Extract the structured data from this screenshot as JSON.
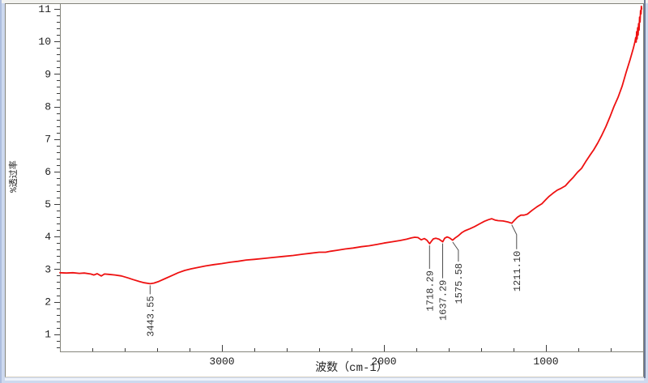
{
  "window": {
    "background_color": "#cdd9ef",
    "panel_color": "#ffffff",
    "frame_gray": "#85857c",
    "frame_beige": "#d9d4c4"
  },
  "chart_data": {
    "type": "line",
    "title": "",
    "x_axis": {
      "label": "波数（cm-1）",
      "min": 400,
      "max": 4000,
      "reversed": true,
      "major_ticks": [
        3000,
        2000,
        1000
      ],
      "minor_step": 200,
      "grid": false
    },
    "y_axis": {
      "label": "%透过率",
      "min": 0.47,
      "max": 11.15,
      "major_ticks": [
        1,
        2,
        3,
        4,
        5,
        6,
        7,
        8,
        9,
        10,
        11
      ],
      "minor_step": 0.2,
      "grid": false
    },
    "legend": "none",
    "series": [
      {
        "name": "ir-transmittance-spectrum",
        "color": "#ee1111",
        "points": [
          [
            4000,
            2.89
          ],
          [
            3960,
            2.88
          ],
          [
            3920,
            2.89
          ],
          [
            3880,
            2.87
          ],
          [
            3850,
            2.88
          ],
          [
            3810,
            2.85
          ],
          [
            3790,
            2.82
          ],
          [
            3770,
            2.86
          ],
          [
            3745,
            2.79
          ],
          [
            3725,
            2.85
          ],
          [
            3700,
            2.84
          ],
          [
            3660,
            2.82
          ],
          [
            3620,
            2.79
          ],
          [
            3580,
            2.73
          ],
          [
            3550,
            2.68
          ],
          [
            3510,
            2.62
          ],
          [
            3480,
            2.58
          ],
          [
            3443,
            2.55
          ],
          [
            3420,
            2.57
          ],
          [
            3390,
            2.62
          ],
          [
            3350,
            2.71
          ],
          [
            3310,
            2.8
          ],
          [
            3270,
            2.89
          ],
          [
            3230,
            2.96
          ],
          [
            3190,
            3.01
          ],
          [
            3150,
            3.05
          ],
          [
            3100,
            3.1
          ],
          [
            3050,
            3.14
          ],
          [
            3000,
            3.17
          ],
          [
            2950,
            3.21
          ],
          [
            2900,
            3.24
          ],
          [
            2850,
            3.28
          ],
          [
            2800,
            3.3
          ],
          [
            2740,
            3.33
          ],
          [
            2680,
            3.36
          ],
          [
            2620,
            3.39
          ],
          [
            2560,
            3.42
          ],
          [
            2500,
            3.46
          ],
          [
            2450,
            3.49
          ],
          [
            2400,
            3.52
          ],
          [
            2360,
            3.52
          ],
          [
            2330,
            3.55
          ],
          [
            2290,
            3.58
          ],
          [
            2240,
            3.62
          ],
          [
            2190,
            3.65
          ],
          [
            2140,
            3.69
          ],
          [
            2090,
            3.72
          ],
          [
            2040,
            3.76
          ],
          [
            2000,
            3.8
          ],
          [
            1950,
            3.84
          ],
          [
            1900,
            3.88
          ],
          [
            1860,
            3.92
          ],
          [
            1830,
            3.96
          ],
          [
            1810,
            3.98
          ],
          [
            1790,
            3.97
          ],
          [
            1770,
            3.9
          ],
          [
            1750,
            3.94
          ],
          [
            1735,
            3.89
          ],
          [
            1718,
            3.78
          ],
          [
            1705,
            3.87
          ],
          [
            1695,
            3.93
          ],
          [
            1680,
            3.95
          ],
          [
            1660,
            3.92
          ],
          [
            1637,
            3.84
          ],
          [
            1625,
            3.95
          ],
          [
            1610,
            3.99
          ],
          [
            1595,
            3.96
          ],
          [
            1576,
            3.89
          ],
          [
            1560,
            3.96
          ],
          [
            1540,
            4.03
          ],
          [
            1520,
            4.12
          ],
          [
            1500,
            4.18
          ],
          [
            1470,
            4.24
          ],
          [
            1440,
            4.31
          ],
          [
            1410,
            4.39
          ],
          [
            1380,
            4.47
          ],
          [
            1355,
            4.52
          ],
          [
            1335,
            4.55
          ],
          [
            1315,
            4.51
          ],
          [
            1295,
            4.49
          ],
          [
            1265,
            4.48
          ],
          [
            1235,
            4.45
          ],
          [
            1211,
            4.41
          ],
          [
            1195,
            4.5
          ],
          [
            1175,
            4.6
          ],
          [
            1155,
            4.66
          ],
          [
            1135,
            4.66
          ],
          [
            1115,
            4.69
          ],
          [
            1085,
            4.81
          ],
          [
            1055,
            4.92
          ],
          [
            1025,
            5.01
          ],
          [
            1000,
            5.14
          ],
          [
            980,
            5.24
          ],
          [
            955,
            5.34
          ],
          [
            930,
            5.43
          ],
          [
            905,
            5.49
          ],
          [
            880,
            5.56
          ],
          [
            855,
            5.7
          ],
          [
            830,
            5.83
          ],
          [
            805,
            5.98
          ],
          [
            780,
            6.1
          ],
          [
            755,
            6.3
          ],
          [
            730,
            6.49
          ],
          [
            705,
            6.67
          ],
          [
            680,
            6.88
          ],
          [
            655,
            7.12
          ],
          [
            630,
            7.38
          ],
          [
            605,
            7.68
          ],
          [
            580,
            8.0
          ],
          [
            555,
            8.28
          ],
          [
            530,
            8.62
          ],
          [
            505,
            9.05
          ],
          [
            480,
            9.45
          ],
          [
            460,
            9.8
          ],
          [
            450,
            10.0
          ],
          [
            446,
            10.12
          ],
          [
            443,
            9.98
          ],
          [
            440,
            10.3
          ],
          [
            437,
            10.08
          ],
          [
            434,
            10.42
          ],
          [
            431,
            10.2
          ],
          [
            428,
            10.55
          ],
          [
            425,
            10.35
          ],
          [
            422,
            10.75
          ],
          [
            419,
            10.6
          ],
          [
            416,
            10.95
          ],
          [
            413,
            10.85
          ],
          [
            411,
            11.08
          ],
          [
            409,
            11.0
          ]
        ]
      }
    ],
    "annotations": [
      {
        "text": "3443.55",
        "w": 3443.55,
        "v": 2.55,
        "leader": [
          [
            0,
            2
          ],
          [
            0,
            13
          ]
        ]
      },
      {
        "text": "1718.29",
        "w": 1718.29,
        "v": 3.78,
        "leader": [
          [
            0,
            2
          ],
          [
            0,
            31
          ]
        ]
      },
      {
        "text": "1637.29",
        "w": 1637.29,
        "v": 3.84,
        "leader": [
          [
            0,
            2
          ],
          [
            0,
            45
          ]
        ]
      },
      {
        "text": "1575.58",
        "w": 1575.58,
        "v": 3.88,
        "leader": [
          [
            0,
            2
          ],
          [
            7,
            12
          ],
          [
            7,
            26
          ]
        ]
      },
      {
        "text": "1211.10",
        "w": 1211.1,
        "v": 4.41,
        "leader": [
          [
            0,
            2
          ],
          [
            6,
            14
          ],
          [
            6,
            32
          ]
        ]
      }
    ],
    "annotation_color": "#4d4d4d",
    "axis_color": "#85857c",
    "tick_color": "#3c3c3c",
    "tick_label_color": "#1c1c1c"
  }
}
